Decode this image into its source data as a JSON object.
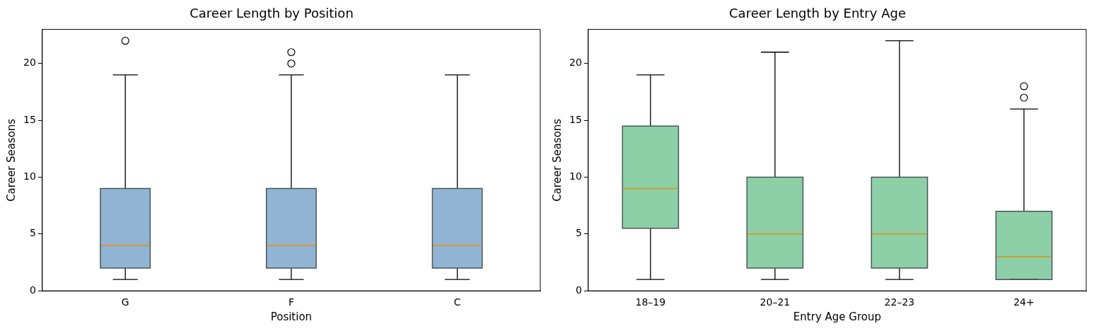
{
  "chart_data": [
    {
      "type": "box",
      "title": "Career Length by Position",
      "xlabel": "Position",
      "ylabel": "Career Seasons",
      "categories": [
        "G",
        "F",
        "C"
      ],
      "ylim": [
        0,
        23
      ],
      "yticks": [
        0,
        5,
        10,
        15,
        20
      ],
      "grid": false,
      "series": [
        {
          "color": "#92b4d4",
          "boxes": [
            {
              "low": 1,
              "q1": 2,
              "median": 4,
              "q3": 9,
              "high": 19,
              "outliers": [
                22
              ]
            },
            {
              "low": 1,
              "q1": 2,
              "median": 4,
              "q3": 9,
              "high": 19,
              "outliers": [
                20,
                21
              ]
            },
            {
              "low": 1,
              "q1": 2,
              "median": 4,
              "q3": 9,
              "high": 19
            }
          ]
        }
      ]
    },
    {
      "type": "box",
      "title": "Career Length by Entry Age",
      "xlabel": "Entry Age Group",
      "ylabel": "Career Seasons",
      "categories": [
        "18–19",
        "20–21",
        "22–23",
        "24+"
      ],
      "ylim": [
        0,
        23
      ],
      "yticks": [
        0,
        5,
        10,
        15,
        20
      ],
      "grid": false,
      "series": [
        {
          "color": "#8dd0a8",
          "boxes": [
            {
              "low": 1,
              "q1": 5.5,
              "median": 9,
              "q3": 14.5,
              "high": 19
            },
            {
              "low": 1,
              "q1": 2,
              "median": 5,
              "q3": 10,
              "high": 21
            },
            {
              "low": 1,
              "q1": 2,
              "median": 5,
              "q3": 10,
              "high": 22
            },
            {
              "low": 1,
              "q1": 1,
              "median": 3,
              "q3": 7,
              "high": 16,
              "outliers": [
                17,
                18
              ]
            }
          ]
        }
      ]
    }
  ]
}
